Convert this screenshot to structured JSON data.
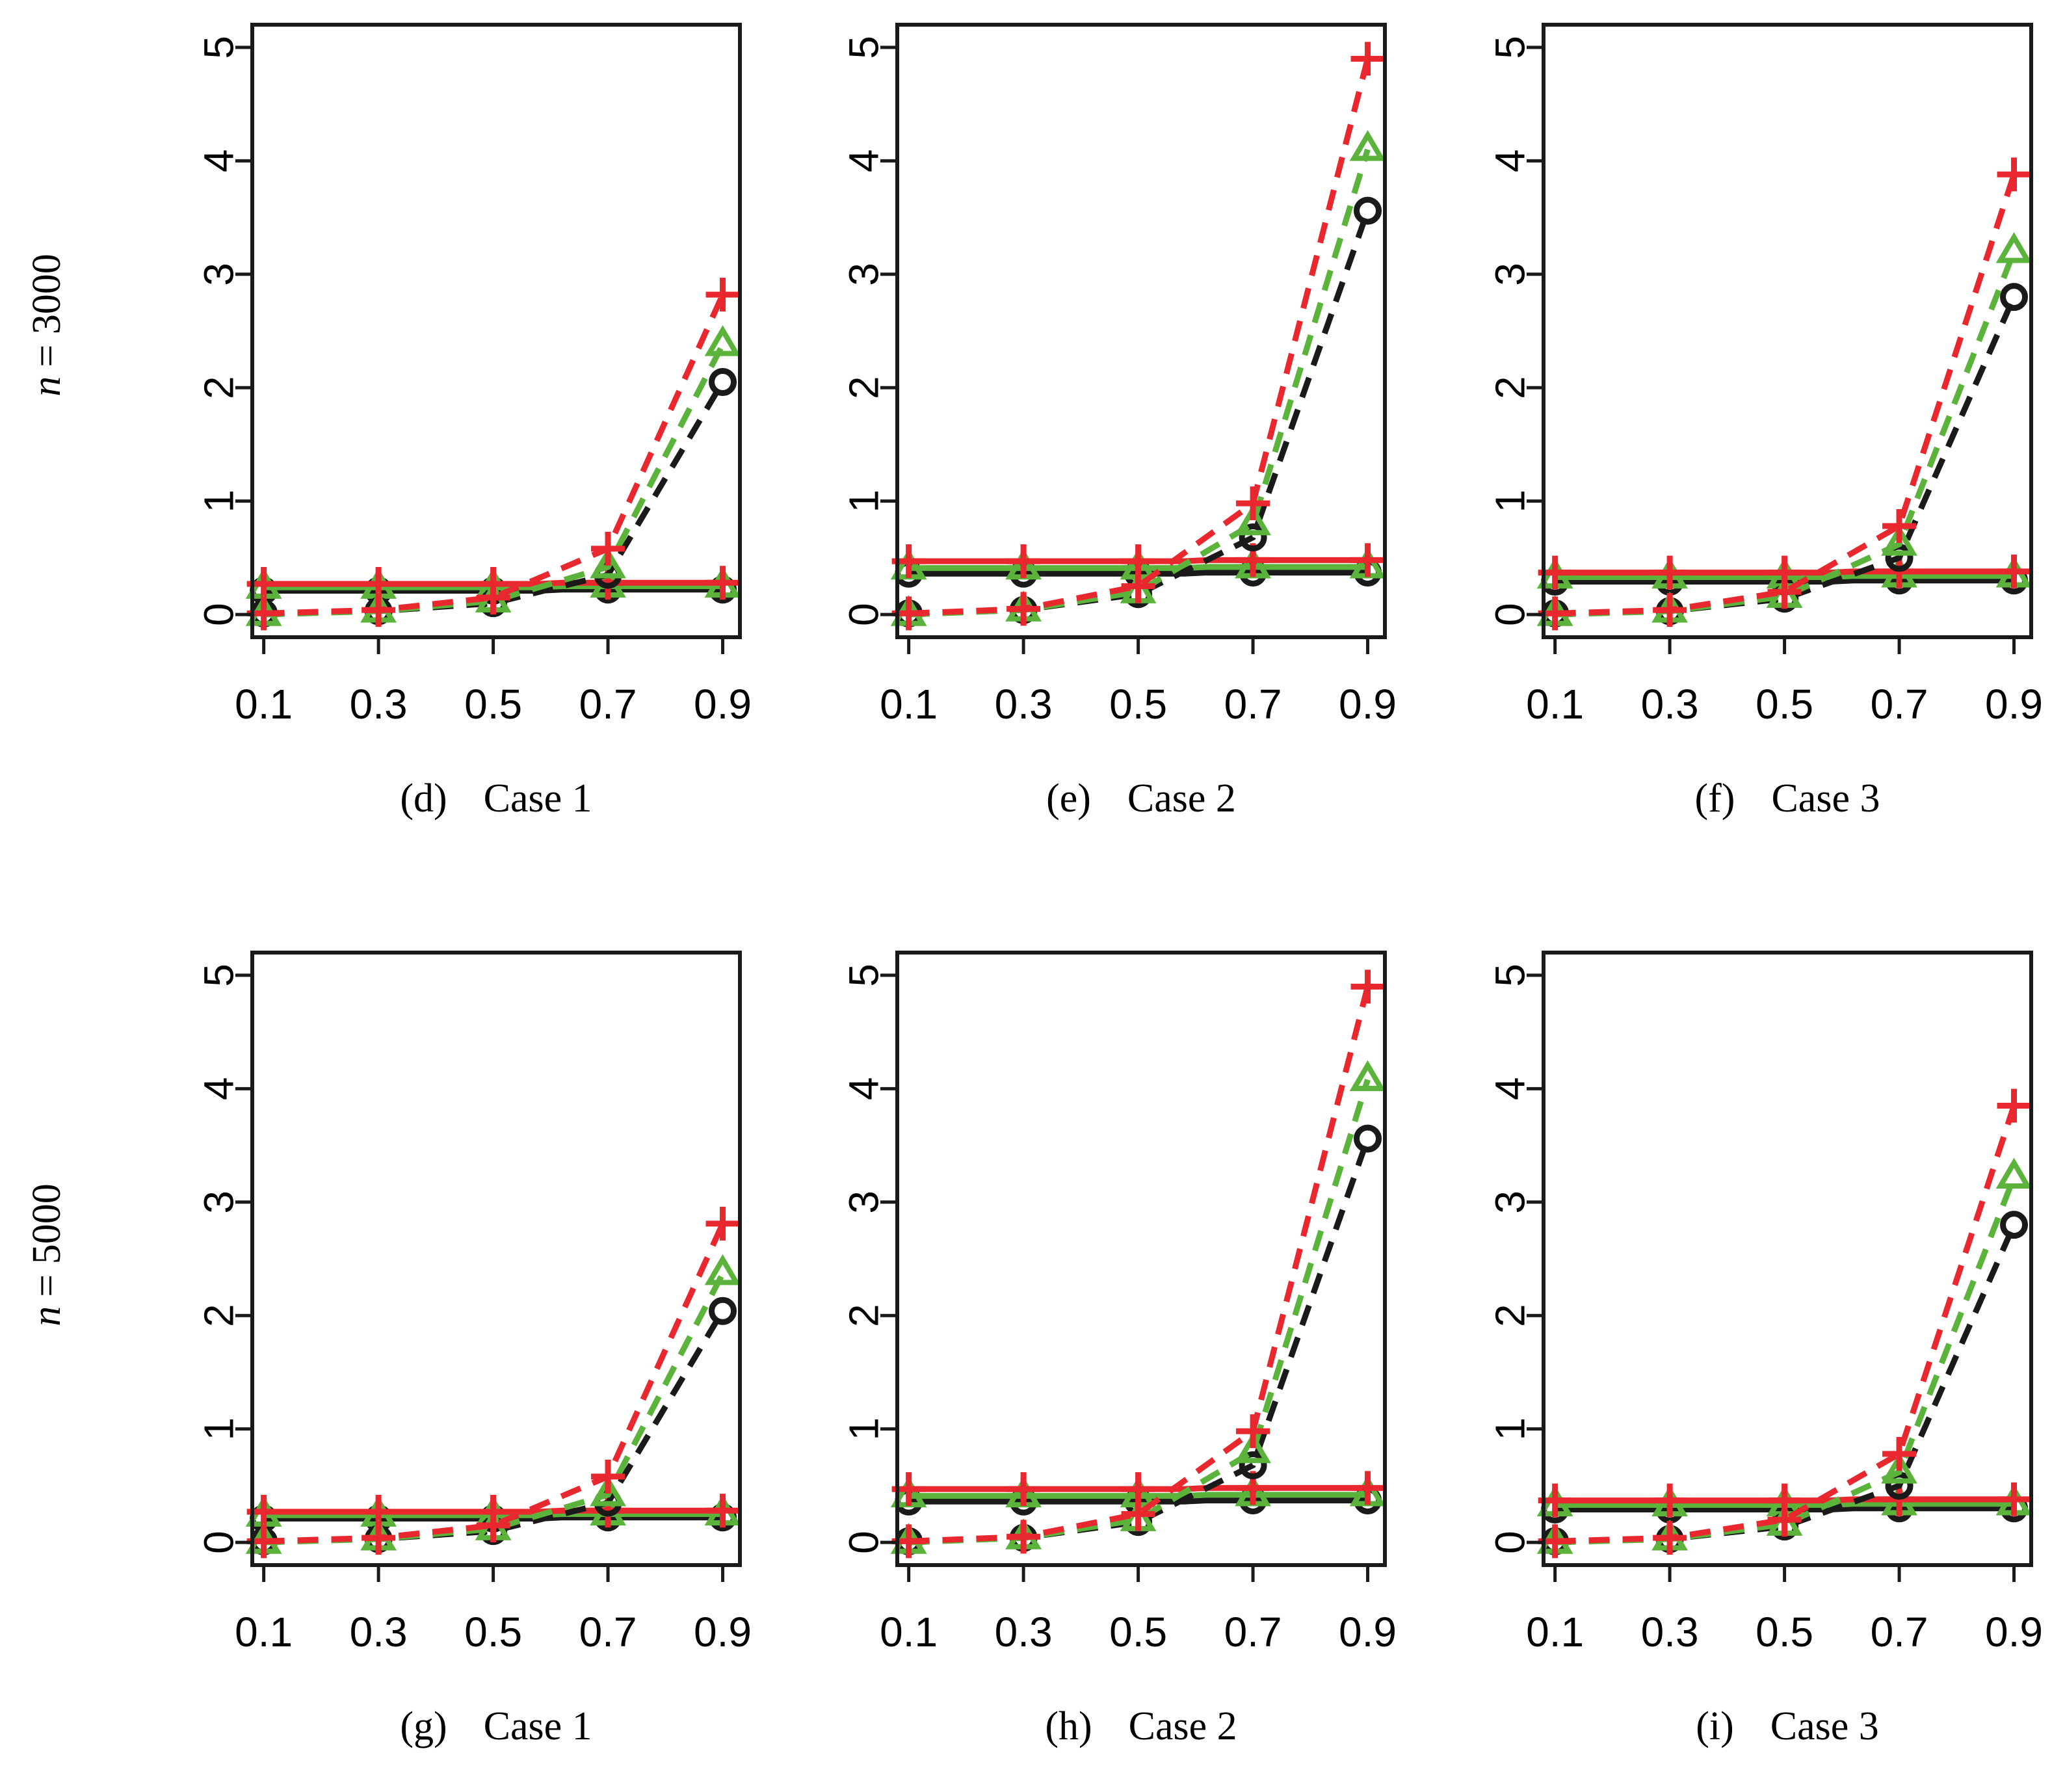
{
  "figure": {
    "row_labels": [
      {
        "var": "n",
        "eq": "= 3000"
      },
      {
        "var": "n",
        "eq": "= 5000"
      }
    ]
  },
  "styles": {
    "colors": {
      "black": "#1a1a1a",
      "green": "#5cb33c",
      "red": "#e8282e"
    },
    "markers": {
      "black": "circle",
      "green": "triangle",
      "red": "plus"
    }
  },
  "chart_data": [
    {
      "type": "line",
      "panel_letter": "(d)",
      "panel_title": "Case 1",
      "x": [
        0.1,
        0.3,
        0.5,
        0.7,
        0.9
      ],
      "x_tick_labels": [
        "0.1",
        "0.3",
        "0.5",
        "0.7",
        "0.9"
      ],
      "ylim": [
        0,
        5
      ],
      "y_ticks": [
        "0",
        "1",
        "2",
        "3",
        "4",
        "5"
      ],
      "series": [
        {
          "name": "black-dashed",
          "color": "black",
          "dash": true,
          "values": [
            0.01,
            0.03,
            0.1,
            0.35,
            2.05
          ]
        },
        {
          "name": "green-dashed",
          "color": "green",
          "dash": true,
          "values": [
            0.0,
            0.03,
            0.12,
            0.42,
            2.38
          ]
        },
        {
          "name": "red-dashed",
          "color": "red",
          "dash": true,
          "values": [
            0.01,
            0.04,
            0.15,
            0.58,
            2.82
          ]
        },
        {
          "name": "black-solid",
          "color": "black",
          "dash": false,
          "values": [
            0.21,
            0.21,
            0.21,
            0.22,
            0.22
          ]
        },
        {
          "name": "green-solid",
          "color": "green",
          "dash": false,
          "values": [
            0.24,
            0.24,
            0.24,
            0.25,
            0.25
          ]
        },
        {
          "name": "red-solid",
          "color": "red",
          "dash": false,
          "values": [
            0.27,
            0.27,
            0.27,
            0.28,
            0.28
          ]
        }
      ]
    },
    {
      "type": "line",
      "panel_letter": "(e)",
      "panel_title": "Case 2",
      "x": [
        0.1,
        0.3,
        0.5,
        0.7,
        0.9
      ],
      "x_tick_labels": [
        "0.1",
        "0.3",
        "0.5",
        "0.7",
        "0.9"
      ],
      "ylim": [
        0,
        5
      ],
      "y_ticks": [
        "0",
        "1",
        "2",
        "3",
        "4",
        "5"
      ],
      "series": [
        {
          "name": "black-dashed",
          "color": "black",
          "dash": true,
          "values": [
            0.01,
            0.04,
            0.18,
            0.68,
            3.56
          ]
        },
        {
          "name": "green-dashed",
          "color": "green",
          "dash": true,
          "values": [
            0.0,
            0.04,
            0.2,
            0.8,
            4.1
          ]
        },
        {
          "name": "red-dashed",
          "color": "red",
          "dash": true,
          "values": [
            0.01,
            0.05,
            0.25,
            0.98,
            4.9
          ]
        },
        {
          "name": "black-solid",
          "color": "black",
          "dash": false,
          "values": [
            0.36,
            0.36,
            0.36,
            0.37,
            0.37
          ]
        },
        {
          "name": "green-solid",
          "color": "green",
          "dash": false,
          "values": [
            0.41,
            0.41,
            0.41,
            0.42,
            0.42
          ]
        },
        {
          "name": "red-solid",
          "color": "red",
          "dash": false,
          "values": [
            0.47,
            0.47,
            0.47,
            0.48,
            0.48
          ]
        }
      ]
    },
    {
      "type": "line",
      "panel_letter": "(f)",
      "panel_title": "Case 3",
      "x": [
        0.1,
        0.3,
        0.5,
        0.7,
        0.9
      ],
      "x_tick_labels": [
        "0.1",
        "0.3",
        "0.5",
        "0.7",
        "0.9"
      ],
      "ylim": [
        0,
        5
      ],
      "y_ticks": [
        "0",
        "1",
        "2",
        "3",
        "4",
        "5"
      ],
      "series": [
        {
          "name": "black-dashed",
          "color": "black",
          "dash": true,
          "values": [
            0.01,
            0.03,
            0.14,
            0.5,
            2.8
          ]
        },
        {
          "name": "green-dashed",
          "color": "green",
          "dash": true,
          "values": [
            0.0,
            0.03,
            0.16,
            0.62,
            3.2
          ]
        },
        {
          "name": "red-dashed",
          "color": "red",
          "dash": true,
          "values": [
            0.01,
            0.04,
            0.2,
            0.78,
            3.88
          ]
        },
        {
          "name": "black-solid",
          "color": "black",
          "dash": false,
          "values": [
            0.29,
            0.29,
            0.29,
            0.3,
            0.3
          ]
        },
        {
          "name": "green-solid",
          "color": "green",
          "dash": false,
          "values": [
            0.33,
            0.33,
            0.33,
            0.34,
            0.34
          ]
        },
        {
          "name": "red-solid",
          "color": "red",
          "dash": false,
          "values": [
            0.37,
            0.37,
            0.37,
            0.38,
            0.38
          ]
        }
      ]
    },
    {
      "type": "line",
      "panel_letter": "(g)",
      "panel_title": "Case 1",
      "x": [
        0.1,
        0.3,
        0.5,
        0.7,
        0.9
      ],
      "x_tick_labels": [
        "0.1",
        "0.3",
        "0.5",
        "0.7",
        "0.9"
      ],
      "ylim": [
        0,
        5
      ],
      "y_ticks": [
        "0",
        "1",
        "2",
        "3",
        "4",
        "5"
      ],
      "series": [
        {
          "name": "black-dashed",
          "color": "black",
          "dash": true,
          "values": [
            0.01,
            0.03,
            0.1,
            0.35,
            2.04
          ]
        },
        {
          "name": "green-dashed",
          "color": "green",
          "dash": true,
          "values": [
            0.0,
            0.03,
            0.12,
            0.42,
            2.37
          ]
        },
        {
          "name": "red-dashed",
          "color": "red",
          "dash": true,
          "values": [
            0.01,
            0.04,
            0.15,
            0.58,
            2.81
          ]
        },
        {
          "name": "black-solid",
          "color": "black",
          "dash": false,
          "values": [
            0.21,
            0.21,
            0.21,
            0.22,
            0.22
          ]
        },
        {
          "name": "green-solid",
          "color": "green",
          "dash": false,
          "values": [
            0.24,
            0.24,
            0.24,
            0.25,
            0.25
          ]
        },
        {
          "name": "red-solid",
          "color": "red",
          "dash": false,
          "values": [
            0.27,
            0.27,
            0.27,
            0.28,
            0.28
          ]
        }
      ]
    },
    {
      "type": "line",
      "panel_letter": "(h)",
      "panel_title": "Case 2",
      "x": [
        0.1,
        0.3,
        0.5,
        0.7,
        0.9
      ],
      "x_tick_labels": [
        "0.1",
        "0.3",
        "0.5",
        "0.7",
        "0.9"
      ],
      "ylim": [
        0,
        5
      ],
      "y_ticks": [
        "0",
        "1",
        "2",
        "3",
        "4",
        "5"
      ],
      "series": [
        {
          "name": "black-dashed",
          "color": "black",
          "dash": true,
          "values": [
            0.01,
            0.04,
            0.18,
            0.68,
            3.56
          ]
        },
        {
          "name": "green-dashed",
          "color": "green",
          "dash": true,
          "values": [
            0.0,
            0.04,
            0.2,
            0.8,
            4.08
          ]
        },
        {
          "name": "red-dashed",
          "color": "red",
          "dash": true,
          "values": [
            0.01,
            0.05,
            0.25,
            0.98,
            4.9
          ]
        },
        {
          "name": "black-solid",
          "color": "black",
          "dash": false,
          "values": [
            0.36,
            0.36,
            0.36,
            0.37,
            0.37
          ]
        },
        {
          "name": "green-solid",
          "color": "green",
          "dash": false,
          "values": [
            0.41,
            0.41,
            0.41,
            0.42,
            0.42
          ]
        },
        {
          "name": "red-solid",
          "color": "red",
          "dash": false,
          "values": [
            0.47,
            0.47,
            0.47,
            0.48,
            0.48
          ]
        }
      ]
    },
    {
      "type": "line",
      "panel_letter": "(i)",
      "panel_title": "Case 3",
      "x": [
        0.1,
        0.3,
        0.5,
        0.7,
        0.9
      ],
      "x_tick_labels": [
        "0.1",
        "0.3",
        "0.5",
        "0.7",
        "0.9"
      ],
      "ylim": [
        0,
        5
      ],
      "y_ticks": [
        "0",
        "1",
        "2",
        "3",
        "4",
        "5"
      ],
      "series": [
        {
          "name": "black-dashed",
          "color": "black",
          "dash": true,
          "values": [
            0.01,
            0.03,
            0.14,
            0.5,
            2.8
          ]
        },
        {
          "name": "green-dashed",
          "color": "green",
          "dash": true,
          "values": [
            0.0,
            0.03,
            0.16,
            0.62,
            3.22
          ]
        },
        {
          "name": "red-dashed",
          "color": "red",
          "dash": true,
          "values": [
            0.01,
            0.04,
            0.2,
            0.78,
            3.85
          ]
        },
        {
          "name": "black-solid",
          "color": "black",
          "dash": false,
          "values": [
            0.29,
            0.29,
            0.29,
            0.3,
            0.3
          ]
        },
        {
          "name": "green-solid",
          "color": "green",
          "dash": false,
          "values": [
            0.33,
            0.33,
            0.33,
            0.34,
            0.34
          ]
        },
        {
          "name": "red-solid",
          "color": "red",
          "dash": false,
          "values": [
            0.37,
            0.37,
            0.37,
            0.38,
            0.38
          ]
        }
      ]
    }
  ]
}
